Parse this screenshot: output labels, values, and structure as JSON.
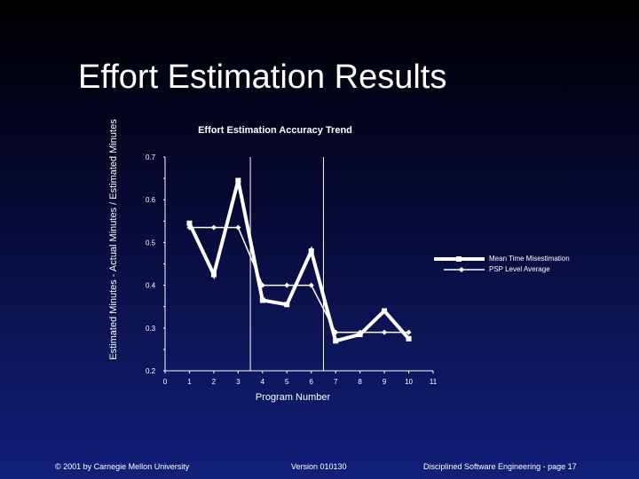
{
  "slide": {
    "title": "Effort Estimation Results",
    "footer_left": "© 2001 by Carnegie Mellon University",
    "footer_center": "Version 010130",
    "footer_right": "Disciplined Software Engineering - page 17"
  },
  "colors": {
    "background_top": "#000000",
    "background_bottom": "#12207a",
    "series": "#ffffff"
  },
  "chart_data": {
    "type": "line",
    "title": "Effort Estimation Accuracy Trend",
    "xlabel": "Program Number",
    "ylabel": "Estimated Minutes - Actual Minutes / Estimated Minutes",
    "xlim": [
      0,
      11
    ],
    "ylim": [
      0.2,
      0.7
    ],
    "x_ticks": [
      0,
      1,
      2,
      3,
      4,
      5,
      6,
      7,
      8,
      9,
      10,
      11
    ],
    "y_ticks": [
      0.2,
      0.3,
      0.4,
      0.5,
      0.6,
      0.7
    ],
    "grid": "vertical lines at x=3.5 and x=6.5",
    "legend_position": "right",
    "series": [
      {
        "name": "Mean Time Misestimation",
        "marker": "square",
        "line": "thick",
        "x": [
          1,
          2,
          3,
          4,
          5,
          6,
          7,
          8,
          9,
          10
        ],
        "y": [
          0.545,
          0.425,
          0.645,
          0.365,
          0.355,
          0.48,
          0.27,
          0.285,
          0.34,
          0.275
        ]
      },
      {
        "name": "PSP Level Average",
        "marker": "diamond",
        "line": "thin",
        "x": [
          1,
          2,
          3,
          4,
          5,
          6,
          7,
          8,
          9,
          10
        ],
        "y": [
          0.535,
          0.535,
          0.535,
          0.4,
          0.4,
          0.4,
          0.29,
          0.29,
          0.29,
          0.29
        ]
      }
    ]
  }
}
